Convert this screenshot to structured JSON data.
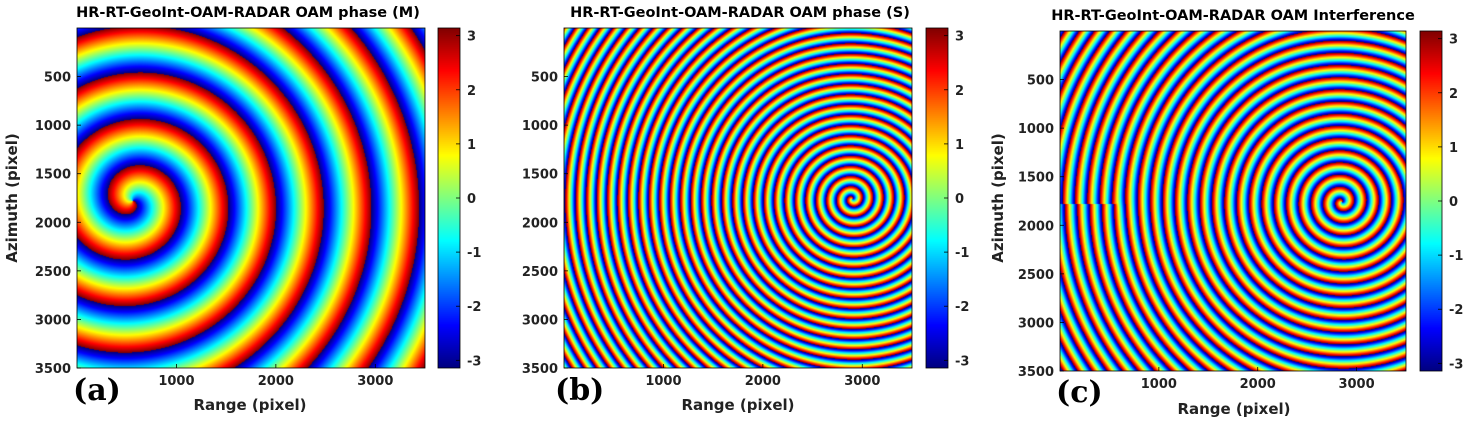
{
  "chart_data": [
    {
      "type": "heatmap",
      "panel_label": "(a)",
      "title": "HR-RT-GeoInt-OAM-RADAR OAM phase (M)",
      "xlabel": "Range (pixel)",
      "ylabel": "Azimuth (pixel)",
      "xlim": [
        0,
        3500
      ],
      "ylim": [
        0,
        3500
      ],
      "y_reversed": true,
      "xticks": [
        1000,
        2000,
        3000
      ],
      "yticks": [
        500,
        1000,
        1500,
        2000,
        2500,
        3000,
        3500
      ],
      "colormap": "jet",
      "clim": [
        -3.14159,
        3.14159
      ],
      "colorbar_ticks": [
        3,
        2,
        1,
        0,
        -1,
        -2,
        -3
      ],
      "pattern": {
        "kind": "phase spiral",
        "center": [
          560,
          1780
        ],
        "radial_period": 480,
        "arms": 1,
        "direction": -1
      }
    },
    {
      "type": "heatmap",
      "panel_label": "(b)",
      "title": "HR-RT-GeoInt-OAM-RADAR OAM phase (S)",
      "xlabel": "Range (pixel)",
      "ylabel": "",
      "xlim": [
        0,
        3500
      ],
      "ylim": [
        0,
        3500
      ],
      "y_reversed": true,
      "xticks": [
        1000,
        2000,
        3000
      ],
      "yticks": [
        500,
        1000,
        1500,
        2000,
        2500,
        3000,
        3500
      ],
      "colormap": "jet",
      "clim": [
        -3.14159,
        3.14159
      ],
      "colorbar_ticks": [
        3,
        2,
        1,
        0,
        -1,
        -2,
        -3
      ],
      "pattern": {
        "kind": "phase spiral",
        "center": [
          2900,
          1760
        ],
        "radial_period": 105,
        "arms": 1,
        "direction": 1
      }
    },
    {
      "type": "heatmap",
      "panel_label": "(c)",
      "title": "HR-RT-GeoInt-OAM-RADAR OAM Interference",
      "xlabel": "Range (pixel)",
      "ylabel": "Azimuth (pixel)",
      "xlim": [
        0,
        3500
      ],
      "ylim": [
        0,
        3500
      ],
      "y_reversed": true,
      "xticks": [
        1000,
        2000,
        3000
      ],
      "yticks": [
        500,
        1000,
        1500,
        2000,
        2500,
        3000,
        3500
      ],
      "colormap": "jet",
      "clim": [
        -3.14159,
        3.14159
      ],
      "colorbar_ticks": [
        3,
        2,
        1,
        0,
        -1,
        -2,
        -3
      ],
      "pattern": {
        "kind": "interference spiral",
        "center": [
          2850,
          1760
        ],
        "radial_period": 125,
        "arms": 1,
        "direction": 1,
        "secondary_center": [
          560,
          1780
        ],
        "secondary_radial_period": 480
      }
    }
  ]
}
